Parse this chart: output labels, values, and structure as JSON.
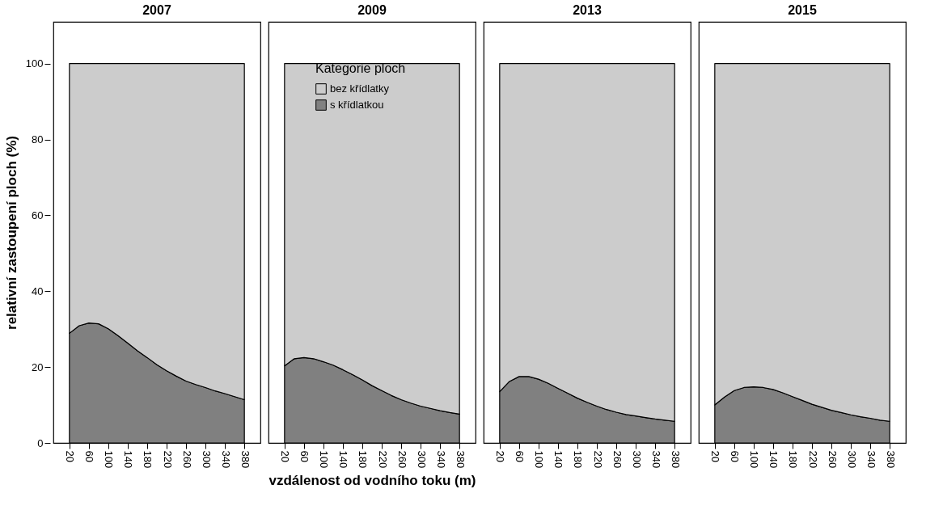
{
  "chart_data": [
    {
      "type": "area",
      "title": "2007",
      "ylabel": "relativní zastoupení ploch (%)",
      "stacked": true,
      "x": [
        20,
        40,
        60,
        80,
        100,
        120,
        140,
        160,
        180,
        200,
        220,
        240,
        260,
        280,
        300,
        320,
        340,
        360,
        380
      ],
      "xlim": [
        -13,
        413
      ],
      "xticks": [
        20,
        60,
        100,
        140,
        180,
        220,
        260,
        300,
        340,
        380
      ],
      "ylim": [
        0,
        111
      ],
      "yticks": [
        0,
        20,
        40,
        60,
        80,
        100
      ],
      "series": [
        {
          "color": "#808080",
          "values": [
            28.9,
            30.9,
            31.6,
            31.4,
            30.1,
            28.3,
            26.3,
            24.3,
            22.5,
            20.6,
            19.0,
            17.6,
            16.3,
            15.4,
            14.6,
            13.7,
            13.0,
            12.2,
            11.4
          ]
        },
        {
          "color": "#cccccc",
          "values": [
            71.1,
            69.1,
            68.4,
            68.6,
            69.9,
            71.7,
            73.7,
            75.7,
            77.5,
            79.4,
            81.0,
            82.4,
            83.7,
            84.6,
            85.4,
            86.3,
            87.0,
            87.8,
            88.6
          ]
        }
      ]
    },
    {
      "type": "area",
      "title": "2009",
      "xlabel": "vzdálenost od vodního toku (m)",
      "stacked": true,
      "tick_labels": "x",
      "legend": "top",
      "legend_title": "Kategorie ploch",
      "x": [
        20,
        40,
        60,
        80,
        100,
        120,
        140,
        160,
        180,
        200,
        220,
        240,
        260,
        280,
        300,
        320,
        340,
        360,
        380
      ],
      "xlim": [
        -13,
        413
      ],
      "xticks": [
        20,
        60,
        100,
        140,
        180,
        220,
        260,
        300,
        340,
        380
      ],
      "ylim": [
        0,
        111
      ],
      "series": [
        {
          "name": "s křídlatkou",
          "color": "#808080",
          "values": [
            20.3,
            22.2,
            22.5,
            22.2,
            21.4,
            20.5,
            19.3,
            18.0,
            16.6,
            15.1,
            13.8,
            12.5,
            11.4,
            10.5,
            9.7,
            9.1,
            8.5,
            8.0,
            7.6
          ]
        },
        {
          "name": "bez křídlatky",
          "color": "#cccccc",
          "values": [
            79.7,
            77.8,
            77.5,
            77.8,
            78.6,
            79.5,
            80.7,
            82.0,
            83.4,
            84.9,
            86.2,
            87.5,
            88.6,
            89.5,
            90.3,
            90.9,
            91.5,
            92.0,
            92.4
          ]
        }
      ]
    },
    {
      "type": "area",
      "title": "2013",
      "stacked": true,
      "tick_labels": "x",
      "x": [
        20,
        40,
        60,
        80,
        100,
        120,
        140,
        160,
        180,
        200,
        220,
        240,
        260,
        280,
        300,
        320,
        340,
        360,
        380
      ],
      "xlim": [
        -13,
        413
      ],
      "xticks": [
        20,
        60,
        100,
        140,
        180,
        220,
        260,
        300,
        340,
        380
      ],
      "ylim": [
        0,
        111
      ],
      "series": [
        {
          "color": "#808080",
          "values": [
            13.5,
            16.2,
            17.5,
            17.5,
            16.8,
            15.7,
            14.4,
            13.1,
            11.8,
            10.7,
            9.7,
            8.8,
            8.1,
            7.5,
            7.1,
            6.7,
            6.3,
            6.0,
            5.7
          ]
        },
        {
          "color": "#cccccc",
          "values": [
            86.5,
            83.8,
            82.5,
            82.5,
            83.2,
            84.3,
            85.6,
            86.9,
            88.2,
            89.3,
            90.3,
            91.2,
            91.9,
            92.5,
            92.9,
            93.3,
            93.7,
            94.0,
            94.3
          ]
        }
      ]
    },
    {
      "type": "area",
      "title": "2015",
      "stacked": true,
      "tick_labels": "x",
      "x": [
        20,
        40,
        60,
        80,
        100,
        120,
        140,
        160,
        180,
        200,
        220,
        240,
        260,
        280,
        300,
        320,
        340,
        360,
        380
      ],
      "xlim": [
        -13,
        413
      ],
      "xticks": [
        20,
        60,
        100,
        140,
        180,
        220,
        260,
        300,
        340,
        380
      ],
      "ylim": [
        0,
        111
      ],
      "series": [
        {
          "color": "#808080",
          "values": [
            10.0,
            12.1,
            13.8,
            14.6,
            14.8,
            14.6,
            14.1,
            13.2,
            12.2,
            11.2,
            10.2,
            9.4,
            8.6,
            8.0,
            7.4,
            6.9,
            6.5,
            6.0,
            5.7
          ]
        },
        {
          "color": "#cccccc",
          "values": [
            90.0,
            87.9,
            86.2,
            85.4,
            85.2,
            85.4,
            85.9,
            86.8,
            87.8,
            88.8,
            89.8,
            90.6,
            91.4,
            92.0,
            92.6,
            93.1,
            93.5,
            94.0,
            94.3
          ]
        }
      ]
    }
  ]
}
